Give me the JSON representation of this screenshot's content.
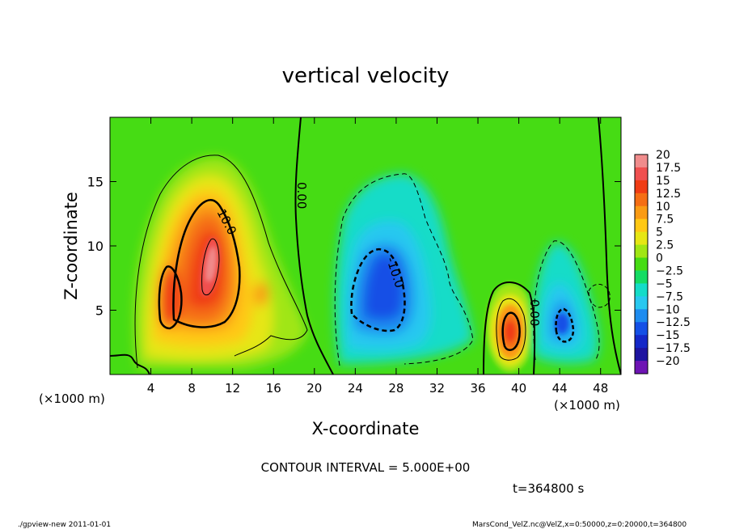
{
  "chart_data": {
    "type": "heatmap",
    "title": "vertical velocity",
    "xlabel": "X-coordinate",
    "ylabel": "Z-coordinate",
    "x_unit": "(×1000 m)",
    "y_unit": "(×1000 m)",
    "x_ticks": [
      "4",
      "8",
      "12",
      "16",
      "20",
      "24",
      "28",
      "32",
      "36",
      "40",
      "44",
      "48"
    ],
    "y_ticks": [
      "5",
      "10",
      "15"
    ],
    "xlim": [
      0,
      50
    ],
    "ylim": [
      0,
      20
    ],
    "colorbar_labels": [
      "20",
      "17.5",
      "15",
      "12.5",
      "10",
      "7.5",
      "5",
      "2.5",
      "0",
      "−2.5",
      "−5",
      "−7.5",
      "−10",
      "−12.5",
      "−15",
      "−17.5",
      "−20"
    ],
    "colorbar_colors": [
      "#f08c8c",
      "#f05050",
      "#f03c14",
      "#f56e14",
      "#fa9b14",
      "#ffc814",
      "#e6e614",
      "#a0e614",
      "#46dc14",
      "#14dc64",
      "#14dcc8",
      "#28c8f0",
      "#1e8cf0",
      "#1450e6",
      "#1428c8",
      "#1e14a0",
      "#6e14b4"
    ],
    "contour_labels": [
      "10.0",
      "0.00",
      "-10.0",
      "0.00"
    ],
    "features": [
      {
        "sign": "positive",
        "center": [
          9.5,
          9
        ],
        "peak": "15"
      },
      {
        "sign": "positive",
        "center": [
          5.5,
          6
        ],
        "peak": "12.5"
      },
      {
        "sign": "negative",
        "center": [
          27,
          8
        ],
        "peak": "-12.5"
      },
      {
        "sign": "positive",
        "center": [
          39,
          3.5
        ],
        "peak": "12.5"
      },
      {
        "sign": "negative",
        "center": [
          44.5,
          4
        ],
        "peak": "-12.5"
      }
    ]
  },
  "labels": {
    "contour_interval": "CONTOUR INTERVAL = 5.000E+00",
    "time": "t=364800 s",
    "footer_left": "./gpview-new  2011-01-01",
    "footer_right": "MarsCond_VelZ.nc@VelZ,x=0:50000,z=0:20000,t=364800"
  }
}
